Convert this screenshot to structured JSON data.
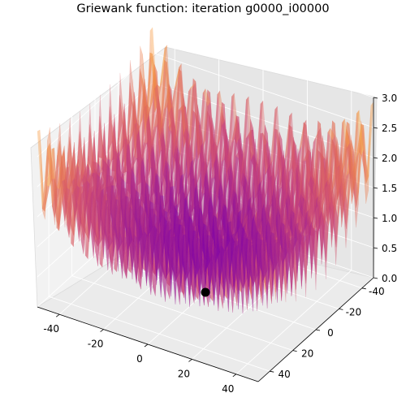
{
  "chart_data": {
    "type": "surface3d",
    "title": "Griewank function: iteration g0000_i00000",
    "function": "griewank",
    "xlim": [
      -50,
      50
    ],
    "ylim": [
      -50,
      50
    ],
    "zlim": [
      0,
      3.0
    ],
    "x_ticks": [
      -40,
      -20,
      0,
      20,
      40
    ],
    "y_ticks": [
      -40,
      -20,
      0,
      20,
      40
    ],
    "z_ticks": [
      0.0,
      0.5,
      1.0,
      1.5,
      2.0,
      2.5,
      3.0
    ],
    "z_tick_labels": [
      "0.0",
      "0.5",
      "1.0",
      "1.5",
      "2.0",
      "2.5",
      "3.0"
    ],
    "colormap": "plasma",
    "surface_alpha": 0.4,
    "grid": true,
    "points": [
      {
        "x": 0,
        "y": 0,
        "z": 0,
        "color": "#000000"
      }
    ]
  }
}
